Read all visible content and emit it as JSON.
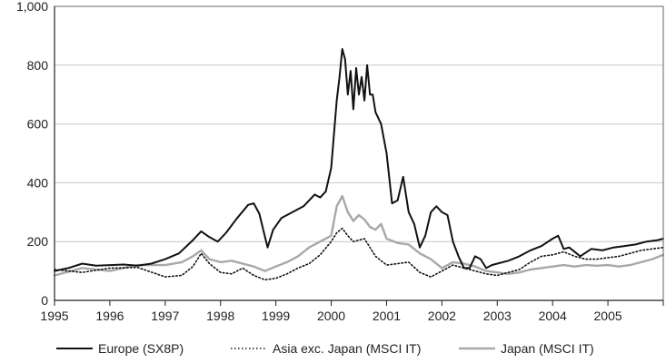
{
  "chart_data": {
    "type": "line",
    "title": "",
    "xlabel": "",
    "ylabel": "",
    "xlim": [
      1995,
      2006
    ],
    "ylim": [
      0,
      1000
    ],
    "x_ticks": [
      "1995",
      "1996",
      "1997",
      "1998",
      "1999",
      "2000",
      "2001",
      "2002",
      "2003",
      "2004",
      "2005"
    ],
    "y_ticks": [
      "0",
      "200",
      "400",
      "600",
      "800",
      "1,000"
    ],
    "grid": "horizontal",
    "legend_position": "bottom",
    "series": [
      {
        "name": "Europe (SX8P)",
        "color": "#111111",
        "style": "solid",
        "x": [
          1995.0,
          1995.25,
          1995.5,
          1995.75,
          1996.0,
          1996.25,
          1996.5,
          1996.75,
          1997.0,
          1997.25,
          1997.5,
          1997.65,
          1997.8,
          1997.95,
          1998.1,
          1998.3,
          1998.5,
          1998.6,
          1998.7,
          1998.85,
          1998.95,
          1999.1,
          1999.3,
          1999.5,
          1999.7,
          1999.8,
          1999.9,
          2000.0,
          2000.1,
          2000.15,
          2000.2,
          2000.25,
          2000.3,
          2000.35,
          2000.4,
          2000.45,
          2000.5,
          2000.55,
          2000.6,
          2000.65,
          2000.7,
          2000.75,
          2000.8,
          2000.9,
          2001.0,
          2001.1,
          2001.2,
          2001.3,
          2001.4,
          2001.5,
          2001.6,
          2001.7,
          2001.8,
          2001.9,
          2002.0,
          2002.1,
          2002.2,
          2002.3,
          2002.4,
          2002.5,
          2002.6,
          2002.7,
          2002.8,
          2002.9,
          2003.0,
          2003.2,
          2003.4,
          2003.6,
          2003.8,
          2004.0,
          2004.1,
          2004.2,
          2004.3,
          2004.5,
          2004.7,
          2004.9,
          2005.1,
          2005.3,
          2005.5,
          2005.7,
          2005.9,
          2006.0
        ],
        "y": [
          100,
          110,
          125,
          118,
          120,
          122,
          118,
          125,
          140,
          160,
          205,
          235,
          215,
          200,
          230,
          280,
          325,
          330,
          295,
          180,
          240,
          280,
          300,
          320,
          360,
          350,
          370,
          450,
          680,
          760,
          855,
          820,
          700,
          780,
          650,
          790,
          700,
          760,
          680,
          800,
          700,
          700,
          640,
          600,
          500,
          330,
          340,
          420,
          300,
          260,
          180,
          220,
          300,
          320,
          300,
          290,
          200,
          150,
          110,
          110,
          150,
          140,
          110,
          120,
          125,
          135,
          150,
          170,
          185,
          210,
          220,
          175,
          180,
          150,
          175,
          170,
          180,
          185,
          190,
          200,
          205,
          210
        ]
      },
      {
        "name": "Asia exc. Japan (MSCI IT)",
        "color": "#111111",
        "style": "dotted",
        "x": [
          1995.0,
          1995.5,
          1996.0,
          1996.5,
          1997.0,
          1997.3,
          1997.5,
          1997.65,
          1997.8,
          1998.0,
          1998.2,
          1998.4,
          1998.6,
          1998.8,
          1999.0,
          1999.2,
          1999.4,
          1999.6,
          1999.8,
          2000.0,
          2000.1,
          2000.2,
          2000.3,
          2000.4,
          2000.6,
          2000.8,
          2001.0,
          2001.2,
          2001.4,
          2001.6,
          2001.8,
          2002.0,
          2002.2,
          2002.4,
          2002.6,
          2002.8,
          2003.0,
          2003.2,
          2003.4,
          2003.6,
          2003.8,
          2004.0,
          2004.2,
          2004.4,
          2004.6,
          2004.8,
          2005.0,
          2005.2,
          2005.4,
          2005.6,
          2005.8,
          2006.0
        ],
        "y": [
          105,
          95,
          110,
          112,
          80,
          85,
          115,
          160,
          125,
          95,
          90,
          110,
          85,
          70,
          75,
          90,
          110,
          125,
          155,
          200,
          230,
          245,
          220,
          200,
          210,
          150,
          120,
          125,
          130,
          95,
          80,
          100,
          120,
          110,
          100,
          90,
          85,
          95,
          105,
          130,
          150,
          155,
          165,
          150,
          140,
          140,
          145,
          150,
          160,
          170,
          175,
          180
        ]
      },
      {
        "name": "Japan (MSCI IT)",
        "color": "#a8a8a8",
        "style": "solid",
        "x": [
          1995.0,
          1995.5,
          1996.0,
          1996.5,
          1997.0,
          1997.3,
          1997.5,
          1997.65,
          1997.8,
          1998.0,
          1998.2,
          1998.4,
          1998.6,
          1998.8,
          1999.0,
          1999.2,
          1999.4,
          1999.6,
          1999.8,
          2000.0,
          2000.1,
          2000.2,
          2000.3,
          2000.4,
          2000.5,
          2000.6,
          2000.7,
          2000.8,
          2000.9,
          2001.0,
          2001.2,
          2001.4,
          2001.6,
          2001.8,
          2002.0,
          2002.2,
          2002.4,
          2002.6,
          2002.8,
          2003.0,
          2003.2,
          2003.4,
          2003.6,
          2003.8,
          2004.0,
          2004.2,
          2004.4,
          2004.6,
          2004.8,
          2005.0,
          2005.2,
          2005.4,
          2005.6,
          2005.8,
          2006.0
        ],
        "y": [
          85,
          110,
          100,
          120,
          120,
          130,
          150,
          170,
          140,
          130,
          135,
          125,
          115,
          100,
          115,
          130,
          150,
          180,
          200,
          220,
          320,
          355,
          300,
          270,
          290,
          275,
          250,
          240,
          260,
          210,
          195,
          190,
          160,
          140,
          110,
          130,
          125,
          115,
          100,
          95,
          90,
          95,
          105,
          110,
          115,
          120,
          115,
          120,
          118,
          120,
          115,
          120,
          130,
          140,
          155
        ]
      }
    ]
  }
}
